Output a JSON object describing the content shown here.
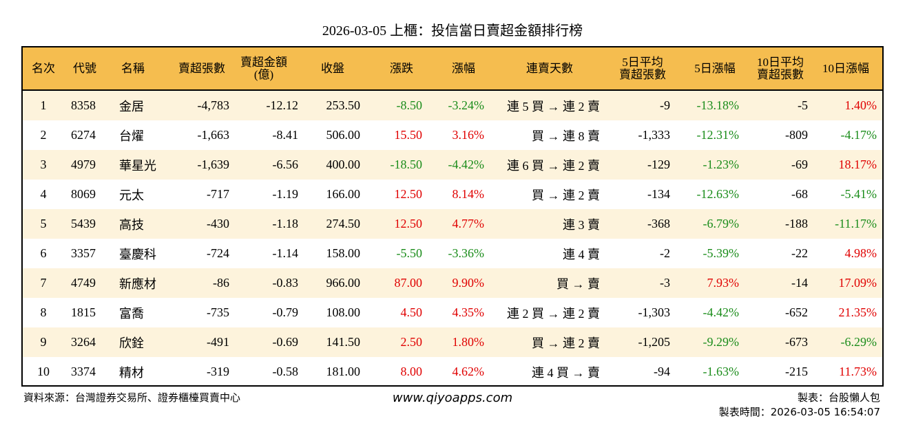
{
  "title": "2026-03-05 上櫃：投信當日賣超金額排行榜",
  "columns": [
    "名次",
    "代號",
    "名稱",
    "賣超張數",
    "賣超金額\n(億)",
    "收盤",
    "漲跌",
    "漲幅",
    "連賣天數",
    "5日平均\n賣超張數",
    "5日漲幅",
    "10日平均\n賣超張數",
    "10日漲幅"
  ],
  "rows": [
    [
      "1",
      "8358",
      "金居",
      "-4,783",
      "-12.12",
      "253.50",
      "-8.50",
      "-3.24%",
      "連 5 買 → 連 2 賣",
      "-9",
      "-13.18%",
      "-5",
      "1.40%"
    ],
    [
      "2",
      "6274",
      "台燿",
      "-1,663",
      "-8.41",
      "506.00",
      "15.50",
      "3.16%",
      "買 → 連 8 賣",
      "-1,333",
      "-12.31%",
      "-809",
      "-4.17%"
    ],
    [
      "3",
      "4979",
      "華星光",
      "-1,639",
      "-6.56",
      "400.00",
      "-18.50",
      "-4.42%",
      "連 6 買 → 連 2 賣",
      "-129",
      "-1.23%",
      "-69",
      "18.17%"
    ],
    [
      "4",
      "8069",
      "元太",
      "-717",
      "-1.19",
      "166.00",
      "12.50",
      "8.14%",
      "買 → 連 2 賣",
      "-134",
      "-12.63%",
      "-68",
      "-5.41%"
    ],
    [
      "5",
      "5439",
      "高技",
      "-430",
      "-1.18",
      "274.50",
      "12.50",
      "4.77%",
      "連 3 賣",
      "-368",
      "-6.79%",
      "-188",
      "-11.17%"
    ],
    [
      "6",
      "3357",
      "臺慶科",
      "-724",
      "-1.14",
      "158.00",
      "-5.50",
      "-3.36%",
      "連 4 賣",
      "-2",
      "-5.39%",
      "-22",
      "4.98%"
    ],
    [
      "7",
      "4749",
      "新應材",
      "-86",
      "-0.83",
      "966.00",
      "87.00",
      "9.90%",
      "買 → 賣",
      "-3",
      "7.93%",
      "-14",
      "17.09%"
    ],
    [
      "8",
      "1815",
      "富喬",
      "-735",
      "-0.79",
      "108.00",
      "4.50",
      "4.35%",
      "連 2 買 → 連 2 賣",
      "-1,303",
      "-4.42%",
      "-652",
      "21.35%"
    ],
    [
      "9",
      "3264",
      "欣銓",
      "-491",
      "-0.69",
      "141.50",
      "2.50",
      "1.80%",
      "買 → 連 2 賣",
      "-1,205",
      "-9.29%",
      "-673",
      "-6.29%"
    ],
    [
      "10",
      "3374",
      "精材",
      "-319",
      "-0.58",
      "181.00",
      "8.00",
      "4.62%",
      "連 4 買 → 賣",
      "-94",
      "-1.63%",
      "-215",
      "11.73%"
    ]
  ],
  "footer": {
    "source": "資料來源：台灣證券交易所、證券櫃檯買賣中心",
    "site": "www.qiyoapps.com",
    "maker": "製表：台股懶人包",
    "time": "製表時間：2026-03-05 16:54:07"
  },
  "colors": {
    "header": "#f5bd4f",
    "alt_row": "#fdf3dc",
    "up": "#e00000",
    "down": "#1a8c1a"
  }
}
